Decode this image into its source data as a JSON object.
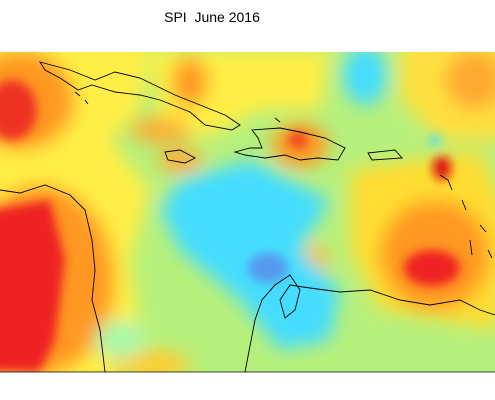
{
  "header": {
    "title": "SPI  June 2016"
  }
}
